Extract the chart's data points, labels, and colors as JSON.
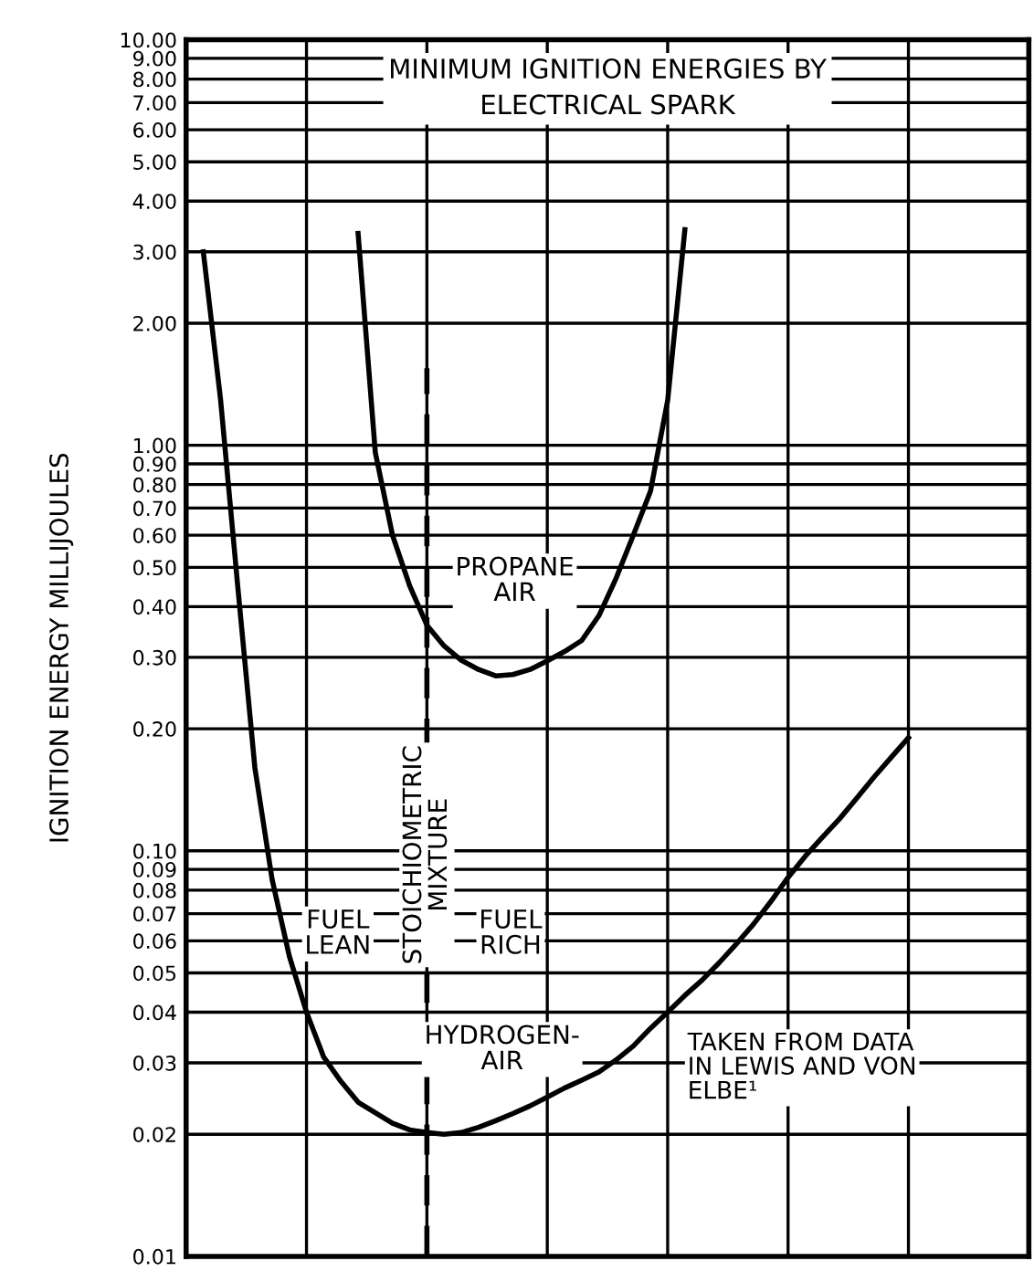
{
  "chart_data": {
    "type": "line",
    "title": "MINIMUM IGNITION ENERGIES BY\nELECTRICAL SPARK",
    "ylabel": "IGNITION ENERGY MILLIJOULES",
    "log": "y",
    "grid": true,
    "line_style": "solid",
    "marker": "none",
    "categories": [
      null,
      null,
      null,
      null,
      null,
      null,
      null,
      null,
      null,
      null,
      null,
      null,
      null,
      null,
      null,
      null,
      null,
      null,
      null,
      null,
      null,
      null,
      null,
      null,
      null,
      null,
      null,
      null,
      null,
      null,
      null,
      null,
      null,
      null,
      null,
      null,
      null,
      null,
      null,
      null,
      null,
      null,
      null,
      null,
      null,
      null,
      null,
      null,
      null,
      null
    ],
    "ylim": [
      0.01,
      10
    ],
    "yticks": [
      {
        "value": 0.01,
        "label": "0.01"
      },
      {
        "value": 0.02,
        "label": "0.02"
      },
      {
        "value": 0.03,
        "label": "0.03"
      },
      {
        "value": 0.04,
        "label": "0.04"
      },
      {
        "value": 0.05,
        "label": "0.05"
      },
      {
        "value": 0.06,
        "label": "0.06"
      },
      {
        "value": 0.07,
        "label": "0.07"
      },
      {
        "value": 0.08,
        "label": "0.08"
      },
      {
        "value": 0.09,
        "label": "0.09"
      },
      {
        "value": 0.1,
        "label": "0.10"
      },
      {
        "value": 0.2,
        "label": "0.20"
      },
      {
        "value": 0.3,
        "label": "0.30"
      },
      {
        "value": 0.4,
        "label": "0.40"
      },
      {
        "value": 0.5,
        "label": "0.50"
      },
      {
        "value": 0.6,
        "label": "0.60"
      },
      {
        "value": 0.7,
        "label": "0.70"
      },
      {
        "value": 0.8,
        "label": "0.80"
      },
      {
        "value": 0.9,
        "label": "0.90"
      },
      {
        "value": 1,
        "label": "1.00"
      },
      {
        "value": 2,
        "label": "2.00"
      },
      {
        "value": 3,
        "label": "3.00"
      },
      {
        "value": 4,
        "label": "4.00"
      },
      {
        "value": 5,
        "label": "5.00"
      },
      {
        "value": 6,
        "label": "6.00"
      },
      {
        "value": 7,
        "label": "7.00"
      },
      {
        "value": 8,
        "label": "8.00"
      },
      {
        "value": 9,
        "label": "9.00"
      },
      {
        "value": 10,
        "label": "10.00"
      }
    ],
    "series": [
      {
        "color": "#000000",
        "values": [
          null,
          3.0,
          1.3,
          0.45,
          0.16,
          0.085,
          0.055,
          0.04,
          0.031,
          0.027,
          0.024,
          0.0226,
          0.0213,
          0.0205,
          0.0202,
          0.02,
          0.0202,
          0.0208,
          0.0216,
          0.0225,
          0.0235,
          0.0247,
          0.026,
          0.0272,
          0.0285,
          0.0305,
          0.033,
          0.0365,
          0.04,
          0.044,
          0.048,
          0.053,
          0.059,
          0.066,
          0.075,
          0.086,
          0.097,
          0.108,
          0.12,
          0.135,
          0.152,
          0.17,
          0.19,
          null,
          null,
          null,
          null,
          null,
          null,
          null
        ]
      },
      {
        "color": "#000000",
        "values": [
          null,
          null,
          null,
          null,
          null,
          null,
          null,
          null,
          null,
          null,
          3.33,
          0.96,
          0.6,
          0.45,
          0.36,
          0.32,
          0.295,
          0.28,
          0.27,
          0.272,
          0.28,
          0.294,
          0.31,
          0.33,
          0.38,
          0.47,
          0.6,
          0.77,
          1.29,
          3.4,
          null,
          null,
          null,
          null,
          null,
          null,
          null,
          null,
          null,
          null,
          null,
          null,
          null,
          null,
          null,
          null,
          null,
          null,
          null,
          null
        ]
      }
    ],
    "annotations": [
      "PROPANE\nAIR",
      "FUEL\nLEAN",
      "FUEL\nRICH",
      "HYDROGEN-\nAIR",
      "TAKEN FROM DATA\nIN LEWIS AND VON\nELBE¹",
      "STOICHIOMETRIC\nMIXTURE"
    ]
  }
}
